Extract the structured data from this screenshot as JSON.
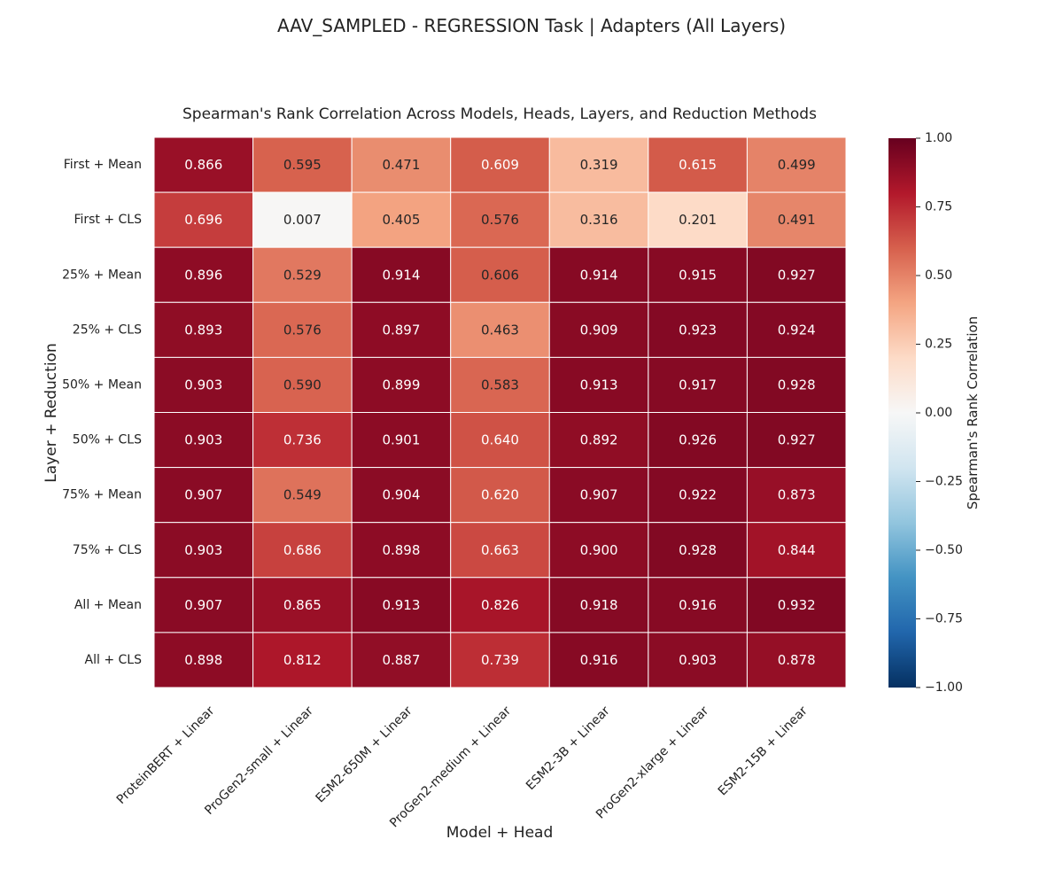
{
  "figure": {
    "suptitle": "AAV_SAMPLED - REGRESSION Task | Adapters (All Layers)"
  },
  "chart_data": {
    "type": "heatmap",
    "title": "Spearman's Rank Correlation Across Models, Heads, Layers, and Reduction Methods",
    "xlabel": "Model + Head",
    "ylabel": "Layer + Reduction",
    "x_categories": [
      "ProteinBERT + Linear",
      "ProGen2-small + Linear",
      "ESM2-650M + Linear",
      "ProGen2-medium + Linear",
      "ESM2-3B + Linear",
      "ProGen2-xlarge + Linear",
      "ESM2-15B + Linear"
    ],
    "y_categories": [
      "First + Mean",
      "First + CLS",
      "25% + Mean",
      "25% + CLS",
      "50% + Mean",
      "50% + CLS",
      "75% + Mean",
      "75% + CLS",
      "All + Mean",
      "All + CLS"
    ],
    "values": [
      [
        0.866,
        0.595,
        0.471,
        0.609,
        0.319,
        0.615,
        0.499
      ],
      [
        0.696,
        0.007,
        0.405,
        0.576,
        0.316,
        0.201,
        0.491
      ],
      [
        0.896,
        0.529,
        0.914,
        0.606,
        0.914,
        0.915,
        0.927
      ],
      [
        0.893,
        0.576,
        0.897,
        0.463,
        0.909,
        0.923,
        0.924
      ],
      [
        0.903,
        0.59,
        0.899,
        0.583,
        0.913,
        0.917,
        0.928
      ],
      [
        0.903,
        0.736,
        0.901,
        0.64,
        0.892,
        0.926,
        0.927
      ],
      [
        0.907,
        0.549,
        0.904,
        0.62,
        0.907,
        0.922,
        0.873
      ],
      [
        0.903,
        0.686,
        0.898,
        0.663,
        0.9,
        0.928,
        0.844
      ],
      [
        0.907,
        0.865,
        0.913,
        0.826,
        0.918,
        0.916,
        0.932
      ],
      [
        0.898,
        0.812,
        0.887,
        0.739,
        0.916,
        0.903,
        0.878
      ]
    ],
    "value_format": "0.000",
    "colormap": "RdBu_r",
    "colormap_stops": [
      "#053061",
      "#2166ac",
      "#4393c3",
      "#92c5de",
      "#d1e5f0",
      "#f7f7f7",
      "#fddbc7",
      "#f4a582",
      "#d6604d",
      "#b2182b",
      "#67001f"
    ],
    "vmin": -1.0,
    "vmax": 1.0,
    "colorbar": {
      "label": "Spearman's Rank Correlation",
      "ticks": [
        1.0,
        0.75,
        0.5,
        0.25,
        0.0,
        -0.25,
        -0.5,
        -0.75,
        -1.0
      ],
      "tick_labels": [
        "1.00",
        "0.75",
        "0.50",
        "0.25",
        "0.00",
        "−0.25",
        "−0.50",
        "−0.75",
        "−1.00"
      ]
    },
    "grid": false,
    "cell_border_color": "#ffffff"
  }
}
